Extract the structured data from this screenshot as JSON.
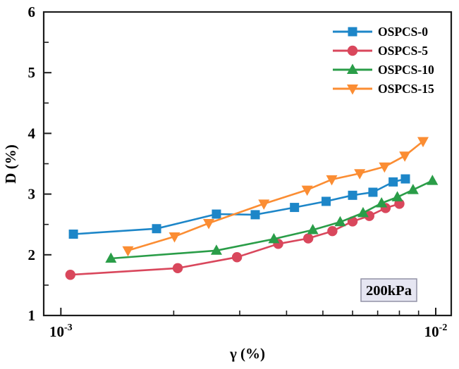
{
  "figure": {
    "background": "#ffffff",
    "frame_color": "#1c1c1c"
  },
  "axes": {
    "xlabel": "γ (%)",
    "ylabel": "D (%)",
    "x_tick_labels": [
      {
        "base": "10",
        "exp": "-3",
        "value": 0.001
      },
      {
        "base": "10",
        "exp": "-2",
        "value": 0.01
      }
    ],
    "y_tick_labels": [
      "1",
      "2",
      "3",
      "4",
      "5",
      "6"
    ]
  },
  "legend": {
    "items": [
      "OSPCS-0",
      "OSPCS-5",
      "OSPCS-10",
      "OSPCS-15"
    ]
  },
  "annotation": {
    "text": "200kPa",
    "fill": "#e6e6f2",
    "border": "#9292a6"
  },
  "chart_data": {
    "type": "line",
    "title": "",
    "xlabel": "γ (%)",
    "ylabel": "D (%)",
    "x_scale": "log",
    "xlim": [
      0.0009,
      0.011
    ],
    "ylim": [
      1,
      6
    ],
    "y_major_ticks": [
      1,
      2,
      3,
      4,
      5,
      6
    ],
    "y_minor_ticks": [
      1.5,
      2.5,
      3.5,
      4.5,
      5.5
    ],
    "x_major_ticks": [
      0.001,
      0.01
    ],
    "x_minor_ticks": [
      0.002,
      0.003,
      0.004,
      0.005,
      0.006,
      0.007,
      0.008,
      0.009
    ],
    "grid": false,
    "legend_position": "upper right",
    "annotation": "200kPa",
    "series": [
      {
        "name": "OSPCS-0",
        "color": "#1d86c8",
        "marker": "square",
        "x": [
          0.00108,
          0.0018,
          0.0026,
          0.0033,
          0.0042,
          0.0051,
          0.006,
          0.0068,
          0.0077,
          0.0083
        ],
        "y": [
          2.34,
          2.43,
          2.67,
          2.66,
          2.78,
          2.88,
          2.98,
          3.03,
          3.2,
          3.25
        ]
      },
      {
        "name": "OSPCS-5",
        "color": "#d9475c",
        "marker": "circle",
        "x": [
          0.00106,
          0.00205,
          0.00295,
          0.0038,
          0.00457,
          0.0053,
          0.006,
          0.00665,
          0.00735,
          0.008
        ],
        "y": [
          1.67,
          1.78,
          1.96,
          2.18,
          2.27,
          2.39,
          2.55,
          2.64,
          2.77,
          2.84
        ]
      },
      {
        "name": "OSPCS-10",
        "color": "#2a9d48",
        "marker": "triangle-up",
        "x": [
          0.00136,
          0.0026,
          0.0037,
          0.0047,
          0.00556,
          0.0064,
          0.00717,
          0.0079,
          0.0087,
          0.0098
        ],
        "y": [
          1.94,
          2.07,
          2.26,
          2.41,
          2.54,
          2.69,
          2.85,
          2.95,
          3.07,
          3.22
        ]
      },
      {
        "name": "OSPCS-15",
        "color": "#fb8d33",
        "marker": "triangle-down",
        "x": [
          0.00151,
          0.00201,
          0.00248,
          0.00348,
          0.00454,
          0.00528,
          0.00627,
          0.0073,
          0.00827,
          0.00925
        ],
        "y": [
          2.07,
          2.3,
          2.52,
          2.84,
          3.07,
          3.24,
          3.34,
          3.45,
          3.63,
          3.87
        ]
      }
    ]
  }
}
